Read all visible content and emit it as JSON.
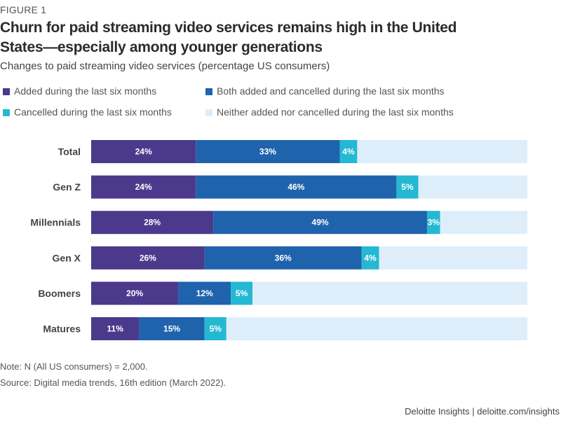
{
  "figure_label": "FIGURE 1",
  "title": "Churn for paid streaming video services remains high in the United States—especially among younger generations",
  "subtitle": "Changes to paid streaming video services (percentage US consumers)",
  "note": "Note: N (All US consumers) = 2,000.",
  "source": "Source: Digital media trends, 16th edition (March 2022).",
  "credit": "Deloitte Insights | deloitte.com/insights",
  "chart_data": {
    "type": "bar",
    "orientation": "horizontal",
    "stacked": true,
    "title": "Churn for paid streaming video services remains high in the United States—especially among younger generations",
    "subtitle": "Changes to paid streaming video services (percentage US consumers)",
    "xlabel": "",
    "ylabel": "",
    "xlim": [
      0,
      100
    ],
    "grid": false,
    "legend_position": "top",
    "categories": [
      "Total",
      "Gen Z",
      "Millennials",
      "Gen X",
      "Boomers",
      "Matures"
    ],
    "series": [
      {
        "name": "Added during the last six months",
        "color": "#4b3a8c",
        "values": [
          24,
          24,
          28,
          26,
          20,
          11
        ],
        "labels": [
          "24%",
          "24%",
          "28%",
          "26%",
          "20%",
          "11%"
        ]
      },
      {
        "name": "Both added and cancelled during the last six months",
        "color": "#1f63ad",
        "values": [
          33,
          46,
          49,
          36,
          12,
          15
        ],
        "labels": [
          "33%",
          "46%",
          "49%",
          "36%",
          "12%",
          "15%"
        ]
      },
      {
        "name": "Cancelled during the last six months",
        "color": "#25b8d3",
        "values": [
          4,
          5,
          3,
          4,
          5,
          5
        ],
        "labels": [
          "4%",
          "5%",
          "3%",
          "4%",
          "5%",
          "5%"
        ]
      },
      {
        "name": "Neither added nor cancelled during the last six months",
        "color": "#ddeefa",
        "values": [
          39,
          25,
          20,
          34,
          63,
          69
        ],
        "labels": [
          "",
          "",
          "",
          "",
          "",
          ""
        ]
      }
    ]
  }
}
